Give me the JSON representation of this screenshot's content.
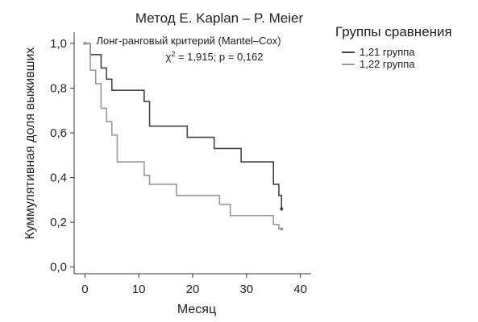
{
  "chart_data": {
    "type": "line",
    "title": "Метод E. Kaplan – P. Meier",
    "xlabel": "Месяц",
    "ylabel": "Куммулятивная доля выживших",
    "xlim": [
      -2,
      42
    ],
    "ylim": [
      -0.03,
      1.05
    ],
    "x_ticks": [
      0,
      10,
      20,
      30,
      40
    ],
    "x_tick_labels": [
      "0",
      "10",
      "20",
      "30",
      "40"
    ],
    "y_ticks": [
      0,
      0.2,
      0.4,
      0.6,
      0.8,
      1.0
    ],
    "y_tick_labels": [
      "0,0",
      "0,2",
      "0,4",
      "0,6",
      "0,8",
      "1,0"
    ],
    "grid": false,
    "legend": {
      "title": "Группы сравнения",
      "placement": "top-right"
    },
    "annotation": {
      "line1": "Лонг-ранговый критерий (Mantel–Cox)",
      "chi": "χ",
      "chi_sup": "2",
      "line2_rest": " = 1,915; p = 0,162"
    },
    "series": [
      {
        "name": "1,21 группа",
        "color": "#444444",
        "steps": [
          [
            0,
            1.0
          ],
          [
            1,
            0.95
          ],
          [
            3,
            0.89
          ],
          [
            4,
            0.84
          ],
          [
            5,
            0.79
          ],
          [
            11,
            0.74
          ],
          [
            12,
            0.63
          ],
          [
            19,
            0.58
          ],
          [
            24,
            0.53
          ],
          [
            29,
            0.47
          ],
          [
            35,
            0.37
          ],
          [
            36,
            0.32
          ],
          [
            36.5,
            0.26
          ]
        ],
        "end_x": 36.5,
        "censored": [
          [
            0,
            1.0
          ],
          [
            36.5,
            0.26
          ]
        ]
      },
      {
        "name": "1,22 группа",
        "color": "#9a9a9a",
        "steps": [
          [
            0,
            1.0
          ],
          [
            1,
            0.88
          ],
          [
            2,
            0.82
          ],
          [
            3,
            0.71
          ],
          [
            4,
            0.65
          ],
          [
            5,
            0.59
          ],
          [
            6,
            0.47
          ],
          [
            11,
            0.41
          ],
          [
            12,
            0.37
          ],
          [
            17,
            0.32
          ],
          [
            25,
            0.28
          ],
          [
            27,
            0.23
          ],
          [
            35,
            0.19
          ],
          [
            36,
            0.17
          ]
        ],
        "end_x": 36.5,
        "censored": [
          [
            0,
            1.0
          ],
          [
            36.5,
            0.17
          ]
        ]
      }
    ]
  }
}
